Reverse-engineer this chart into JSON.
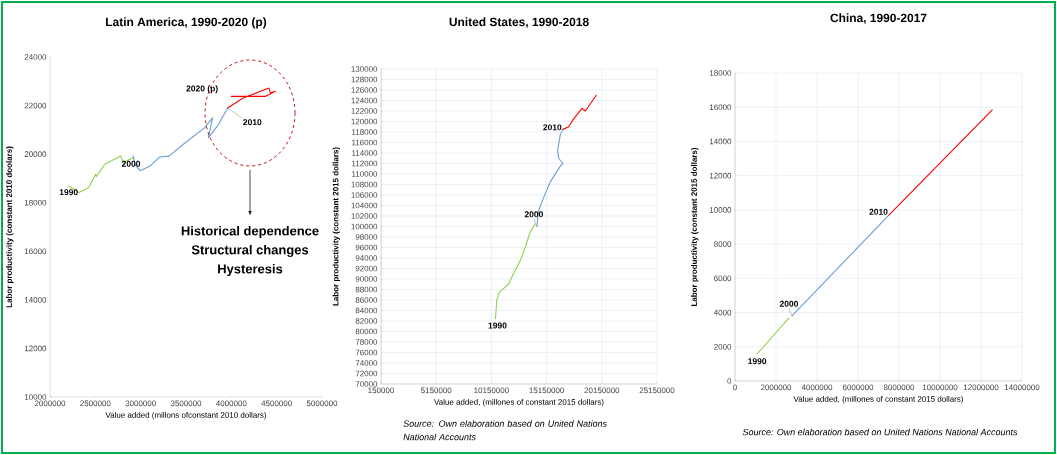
{
  "chart_data": [
    {
      "type": "line",
      "title": "Latin America, 1990-2020 (p)",
      "xlabel": "Value added (millons ofconstant 2010 dollars)",
      "ylabel": "Labor productivity (constant 2010 doolars)",
      "xlim": [
        2000000,
        5000000
      ],
      "ylim": [
        10000,
        24000
      ],
      "xticks": [
        2000000,
        2500000,
        3000000,
        3500000,
        4000000,
        4500000,
        5000000
      ],
      "yticks": [
        10000,
        12000,
        14000,
        16000,
        18000,
        20000,
        22000,
        24000
      ],
      "marker": "none",
      "series": [
        {
          "color": "#92d050",
          "x": [
            2206000,
            2320000,
            2426000,
            2504000,
            2510000,
            2603000,
            2780000,
            2808000,
            2916000
          ],
          "values": [
            18690,
            18420,
            18620,
            19170,
            19070,
            19580,
            19920,
            19650,
            19860
          ]
        },
        {
          "color": "#6a9ed8",
          "x": [
            2916000,
            2940000,
            2994000,
            3100000,
            3207000,
            3313000,
            3491000,
            3704000,
            3793000,
            3746000,
            3846000,
            3960000
          ],
          "values": [
            19930,
            19550,
            19320,
            19500,
            19880,
            19920,
            20470,
            21080,
            21490,
            20670,
            21150,
            21900
          ]
        },
        {
          "color": "#ff0000",
          "x": [
            3960000,
            4130000,
            4414000,
            4432000,
            4485000,
            4378000,
            4000000
          ],
          "values": [
            21900,
            22310,
            22720,
            22520,
            22590,
            22380,
            22380
          ]
        }
      ],
      "annotations": [
        {
          "text": "1990",
          "x": 2206000,
          "y": 18690
        },
        {
          "text": "2000",
          "x": 2916000,
          "y": 19860
        },
        {
          "text": "2010",
          "x": 3960000,
          "y": 21900
        },
        {
          "text": "2020 (p)",
          "x": 4000000,
          "y": 22380
        },
        "Historical dependence",
        "Structural changes",
        "Hysteresis"
      ]
    },
    {
      "type": "line",
      "title": "United States, 1990-2018",
      "xlabel": "Value added, (millones of constant 2015 dollars)",
      "ylabel": "Labor productivity (constant 2015 dollars)",
      "xlim": [
        150000,
        25150000
      ],
      "ylim": [
        70000,
        130000
      ],
      "xticks": [
        150000,
        5150000,
        10150000,
        15150000,
        20150000,
        25150000
      ],
      "yticks": [
        70000,
        72000,
        74000,
        76000,
        78000,
        80000,
        82000,
        84000,
        86000,
        88000,
        90000,
        92000,
        94000,
        96000,
        98000,
        100000,
        102000,
        104000,
        106000,
        108000,
        110000,
        112000,
        114000,
        116000,
        118000,
        120000,
        122000,
        124000,
        126000,
        128000,
        130000
      ],
      "grid": true,
      "marker": "none",
      "series": [
        {
          "color": "#92d050",
          "x": [
            10519000,
            10640000,
            10880000,
            11700000,
            12150000,
            12760000,
            13210000,
            13670000,
            14120000
          ],
          "values": [
            82500,
            86000,
            87500,
            89000,
            91000,
            93500,
            96000,
            99000,
            100500
          ]
        },
        {
          "color": "#6a9ed8",
          "x": [
            14270000,
            14420000,
            14880000,
            15480000,
            16390000,
            16630000,
            16240000,
            16150000,
            16390000,
            16630000
          ],
          "values": [
            100000,
            103000,
            105500,
            108500,
            111500,
            112000,
            113000,
            114500,
            117500,
            118500
          ]
        },
        {
          "color": "#ff0000",
          "x": [
            16630000,
            17150000,
            17600000,
            18360000,
            18660000,
            19650000
          ],
          "values": [
            118500,
            119000,
            120500,
            122500,
            122000,
            125000
          ]
        }
      ],
      "annotations": [
        {
          "text": "1990",
          "x": 10519000,
          "y": 82500
        },
        {
          "text": "2000",
          "x": 14270000,
          "y": 100000
        },
        {
          "text": "2010",
          "x": 16630000,
          "y": 118500
        },
        "Source: Own elaboration based on United Nations National Accounts"
      ]
    },
    {
      "type": "line",
      "title": "China, 1990-2017",
      "xlabel": "Value added, (millones of constant 2015 dollars)",
      "ylabel": "Labor productivity (constant 2015 dollars)",
      "xlim": [
        0,
        14000000
      ],
      "ylim": [
        0,
        18000
      ],
      "xticks": [
        0,
        2000000,
        4000000,
        6000000,
        8000000,
        10000000,
        12000000,
        14000000
      ],
      "yticks": [
        0,
        2000,
        4000,
        6000,
        8000,
        10000,
        12000,
        14000,
        16000,
        18000
      ],
      "grid": true,
      "marker": "none",
      "series": [
        {
          "color": "#92d050",
          "x": [
            1080000,
            2624000
          ],
          "values": [
            1580,
            3670
          ]
        },
        {
          "color": "#6a9ed8",
          "x": [
            2778000,
            7517000
          ],
          "values": [
            3800,
            9710
          ]
        },
        {
          "color": "#ff0000",
          "x": [
            7517000,
            12548000
          ],
          "values": [
            9710,
            15850
          ]
        }
      ],
      "annotations": [
        {
          "text": "1990",
          "x": 1080000,
          "y": 1580
        },
        {
          "text": "2000",
          "x": 2778000,
          "y": 3800
        },
        {
          "text": "2010",
          "x": 7517000,
          "y": 9710
        },
        "Source: Own elaboration based on United Nations National Accounts"
      ]
    }
  ]
}
